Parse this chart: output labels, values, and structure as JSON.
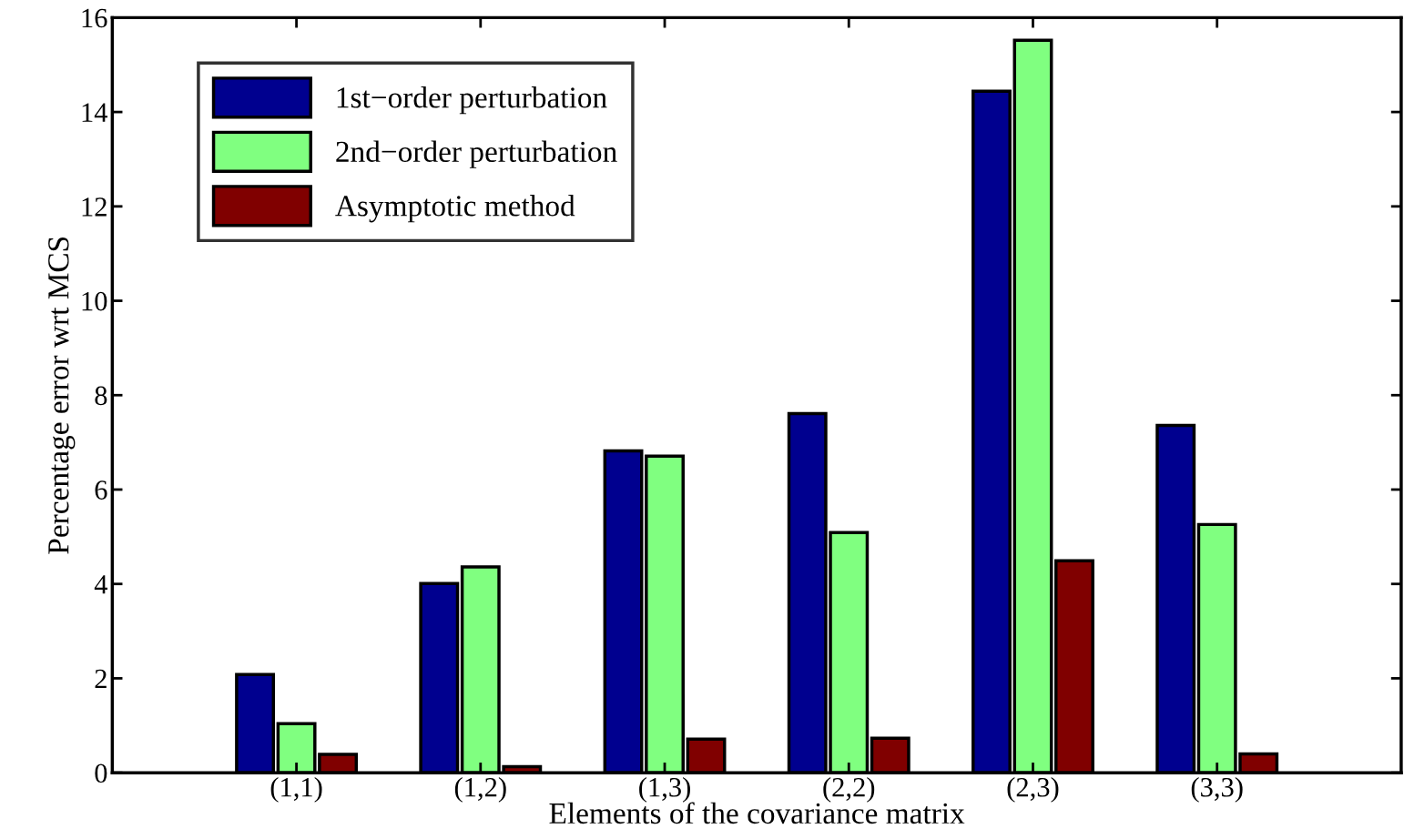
{
  "chart_data": {
    "type": "bar",
    "xlabel": "Elements of the covariance matrix",
    "ylabel": "Percentage error wrt MCS",
    "categories": [
      "(1,1)",
      "(1,2)",
      "(1,3)",
      "(2,2)",
      "(2,3)",
      "(3,3)"
    ],
    "series": [
      {
        "name": "1st−order perturbation",
        "color": "#00008f",
        "values": [
          2.08,
          4.01,
          6.82,
          7.61,
          14.44,
          7.36
        ]
      },
      {
        "name": "2nd−order perturbation",
        "color": "#80ff80",
        "values": [
          1.04,
          4.36,
          6.71,
          5.09,
          15.52,
          5.26
        ]
      },
      {
        "name": "Asymptotic method",
        "color": "#800000",
        "values": [
          0.39,
          0.13,
          0.71,
          0.73,
          4.49,
          0.4
        ]
      }
    ],
    "ylim": [
      0,
      16
    ],
    "yticks": [
      0,
      2,
      4,
      6,
      8,
      10,
      12,
      14,
      16
    ],
    "grid": false,
    "legend": "top left"
  }
}
